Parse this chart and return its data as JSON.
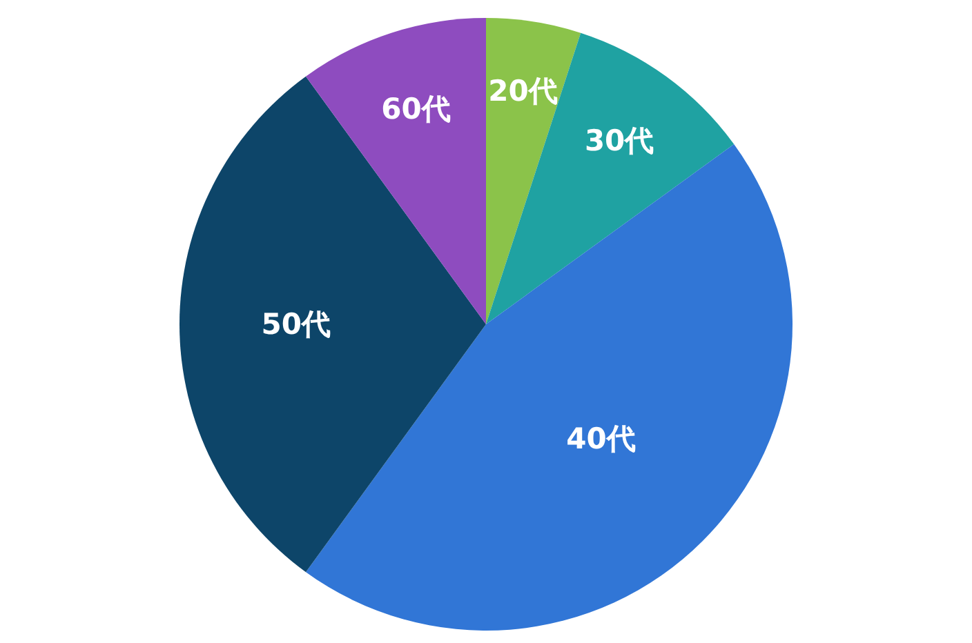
{
  "chart_data": {
    "type": "pie",
    "categories": [
      "20代",
      "30代",
      "40代",
      "50代",
      "60代"
    ],
    "values": [
      5,
      10,
      45,
      30,
      10
    ],
    "colors": [
      "#8bc34a",
      "#1fa2a2",
      "#3176d6",
      "#0d4569",
      "#8e4cbf"
    ]
  }
}
